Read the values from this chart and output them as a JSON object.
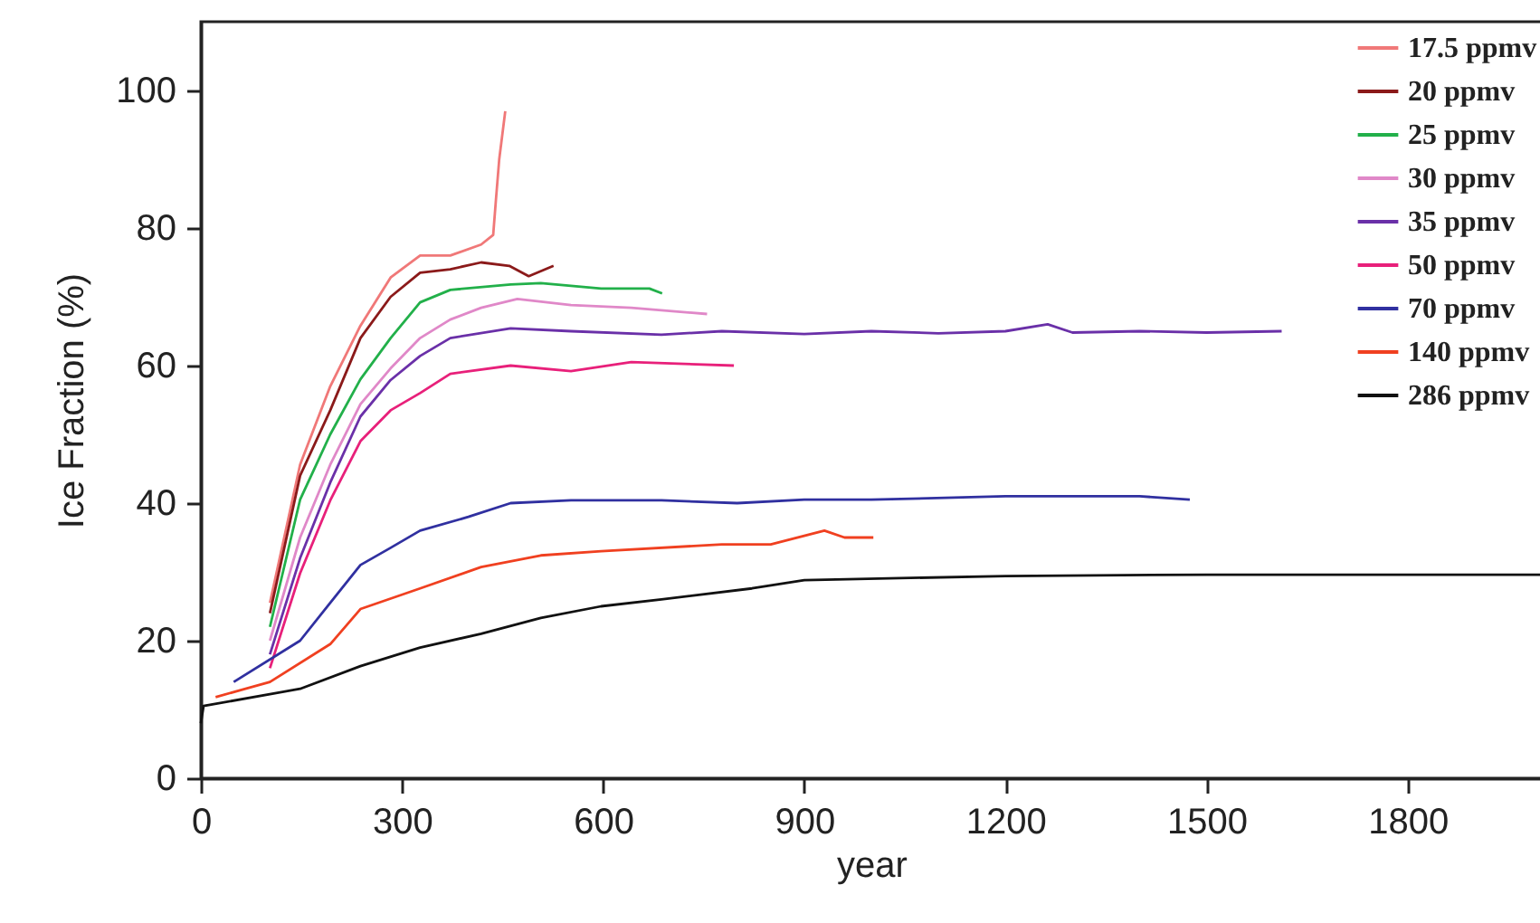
{
  "chart_data": {
    "type": "line",
    "xlabel": "year",
    "ylabel": "Ice Fraction (%)",
    "xlim": [
      0,
      2000
    ],
    "xticks": [
      0,
      300,
      600,
      900,
      1200,
      1500,
      1800
    ],
    "ylim": [
      0,
      110
    ],
    "yticks": [
      0,
      20,
      40,
      60,
      80,
      100
    ],
    "legend": "top right",
    "series": [
      {
        "name": "17.5 ppmv",
        "color": "#f07878",
        "x": [
          103,
          148,
          193,
          238,
          283,
          327,
          372,
          418,
          436,
          440,
          445,
          454
        ],
        "values": [
          25.5,
          45.6,
          57,
          65.8,
          72.8,
          76,
          76,
          77.6,
          79,
          84,
          90,
          97
        ]
      },
      {
        "name": "20 ppmv",
        "color": "#8b1a1a",
        "x": [
          103,
          148,
          193,
          238,
          283,
          327,
          372,
          418,
          460,
          489,
          526
        ],
        "values": [
          24,
          44,
          53.5,
          64,
          70,
          73.5,
          74,
          75,
          74.5,
          73,
          74.5
        ]
      },
      {
        "name": "25 ppmv",
        "color": "#22b04a",
        "x": [
          103,
          148,
          193,
          238,
          283,
          327,
          372,
          462,
          507,
          597,
          669,
          688
        ],
        "values": [
          22,
          40.5,
          50,
          58,
          64,
          69.2,
          71,
          71.8,
          72,
          71.2,
          71.2,
          70.5
        ]
      },
      {
        "name": "30 ppmv",
        "color": "#e088c8",
        "x": [
          103,
          148,
          193,
          238,
          283,
          327,
          372,
          418,
          472,
          552,
          642,
          755
        ],
        "values": [
          20,
          35,
          45.6,
          54.4,
          59.6,
          64,
          66.7,
          68.4,
          69.7,
          68.8,
          68.4,
          67.5
        ]
      },
      {
        "name": "35 ppmv",
        "color": "#6a30a8",
        "x": [
          103,
          148,
          193,
          238,
          283,
          327,
          372,
          462,
          552,
          687,
          777,
          900,
          1000,
          1100,
          1200,
          1263,
          1300,
          1400,
          1500,
          1612
        ],
        "values": [
          18,
          32,
          43,
          52.6,
          57.9,
          61.4,
          64,
          65.4,
          65,
          64.5,
          65,
          64.6,
          65,
          64.7,
          65,
          66,
          64.8,
          65,
          64.8,
          65
        ]
      },
      {
        "name": "50 ppmv",
        "color": "#e8207a",
        "x": [
          103,
          148,
          193,
          238,
          283,
          327,
          372,
          462,
          552,
          642,
          795
        ],
        "values": [
          16,
          29.8,
          40.4,
          49,
          53.5,
          56,
          58.8,
          60,
          59.2,
          60.5,
          60
        ]
      },
      {
        "name": "70 ppmv",
        "color": "#3030a0",
        "x": [
          49,
          148,
          193,
          238,
          283,
          327,
          399,
          462,
          552,
          687,
          800,
          900,
          1000,
          1200,
          1400,
          1475
        ],
        "values": [
          14,
          20,
          25.5,
          31,
          33.5,
          36,
          38,
          40,
          40.4,
          40.4,
          40,
          40.5,
          40.5,
          41,
          41,
          40.5
        ]
      },
      {
        "name": "140 ppmv",
        "color": "#f04020",
        "x": [
          22,
          103,
          193,
          238,
          327,
          418,
          507,
          597,
          777,
          850,
          930,
          960,
          1003
        ],
        "values": [
          11.8,
          14,
          19.5,
          24.6,
          27.6,
          30.7,
          32.4,
          33,
          34,
          34,
          36,
          35,
          35
        ]
      },
      {
        "name": "286 ppmv",
        "color": "#111111",
        "x": [
          0,
          4,
          148,
          238,
          327,
          418,
          507,
          597,
          687,
          822,
          900,
          1200,
          1500,
          1800,
          2000
        ],
        "values": [
          8,
          10.5,
          13,
          16.3,
          19,
          21,
          23.3,
          25,
          26,
          27.6,
          28.8,
          29.4,
          29.6,
          29.6,
          29.6
        ]
      }
    ]
  }
}
